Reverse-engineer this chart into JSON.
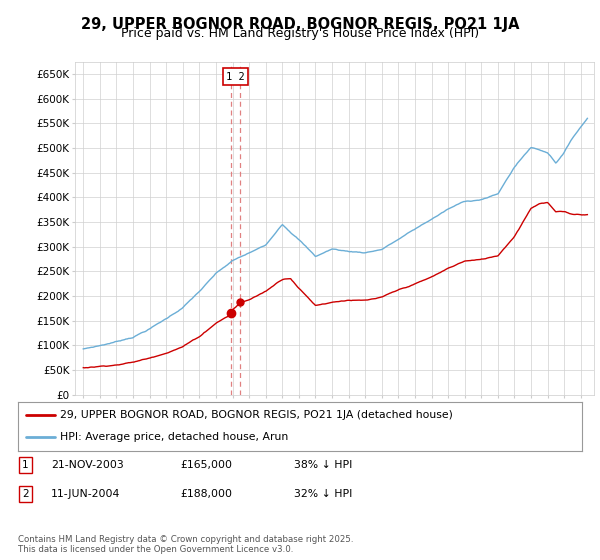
{
  "title": "29, UPPER BOGNOR ROAD, BOGNOR REGIS, PO21 1JA",
  "subtitle": "Price paid vs. HM Land Registry's House Price Index (HPI)",
  "ylim": [
    0,
    675000
  ],
  "yticks": [
    0,
    50000,
    100000,
    150000,
    200000,
    250000,
    300000,
    350000,
    400000,
    450000,
    500000,
    550000,
    600000,
    650000
  ],
  "ytick_labels": [
    "£0",
    "£50K",
    "£100K",
    "£150K",
    "£200K",
    "£250K",
    "£300K",
    "£350K",
    "£400K",
    "£450K",
    "£500K",
    "£550K",
    "£600K",
    "£650K"
  ],
  "hpi_color": "#6baed6",
  "price_color": "#cc0000",
  "marker_color": "#cc0000",
  "vline_color": "#e08080",
  "transaction1_date": 2003.896,
  "transaction1_price": 165000,
  "transaction2_date": 2004.44,
  "transaction2_price": 188000,
  "legend_label_price": "29, UPPER BOGNOR ROAD, BOGNOR REGIS, PO21 1JA (detached house)",
  "legend_label_hpi": "HPI: Average price, detached house, Arun",
  "footer": "Contains HM Land Registry data © Crown copyright and database right 2025.\nThis data is licensed under the Open Government Licence v3.0.",
  "table_rows": [
    {
      "num": "1",
      "date": "21-NOV-2003",
      "price": "£165,000",
      "hpi": "38% ↓ HPI"
    },
    {
      "num": "2",
      "date": "11-JUN-2004",
      "price": "£188,000",
      "hpi": "32% ↓ HPI"
    }
  ],
  "background_color": "#ffffff",
  "grid_color": "#d0d0d0",
  "title_fontsize": 10.5,
  "subtitle_fontsize": 9
}
